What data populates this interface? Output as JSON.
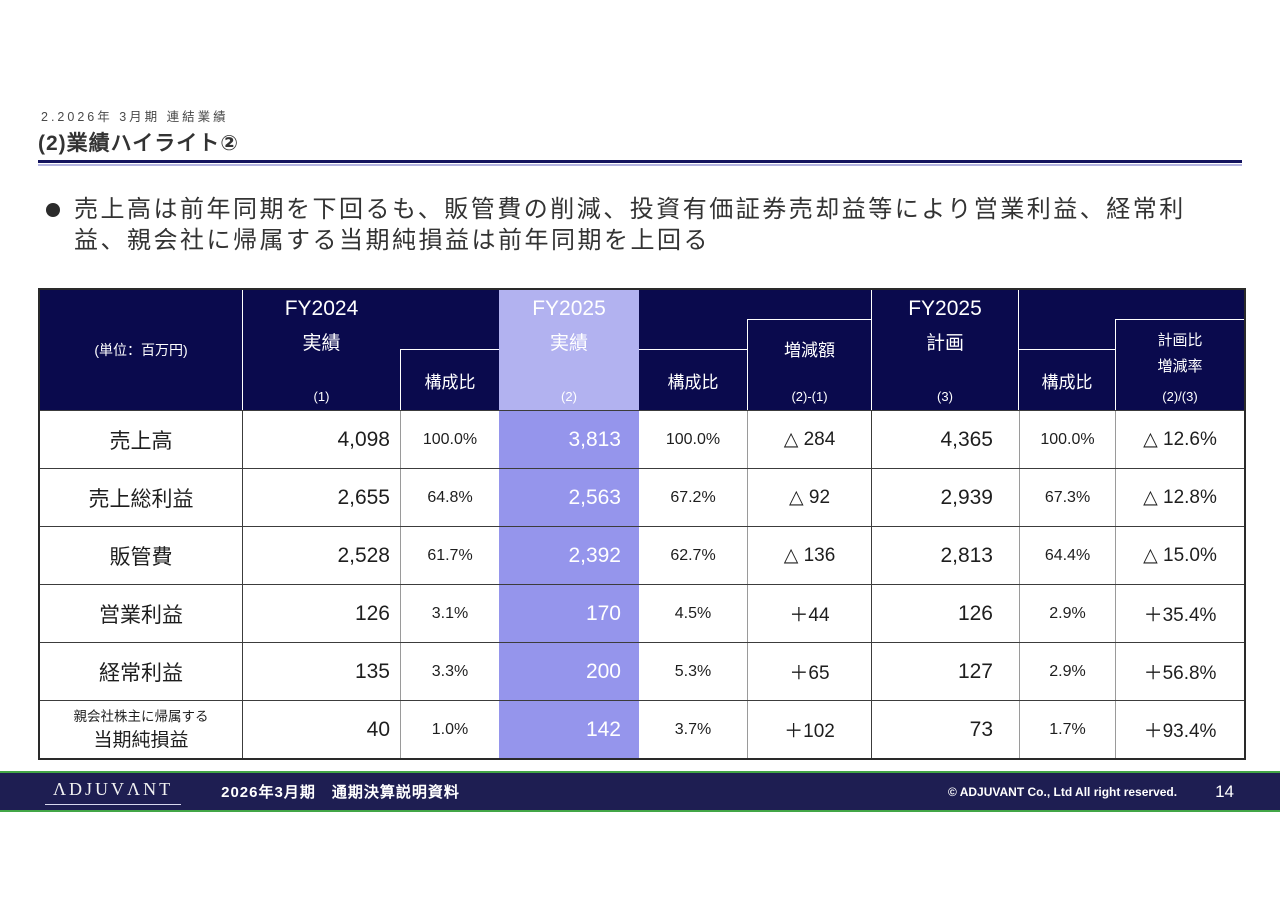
{
  "page": {
    "breadcrumb": "2.2026年 3月期 連結業績",
    "title": "(2)業績ハイライト②"
  },
  "bullet": {
    "lines": [
      "売上高は前年同期を下回るも、販管費の削減、投資有価証券売却益等により営業利益、経常利",
      "益、親会社に帰属する当期純損益は前年同期を上回る"
    ]
  },
  "table": {
    "header": {
      "unit": "(単位：百万円)",
      "fy2024": {
        "title": "FY2024",
        "subtitle": "実績",
        "ref": "(1)"
      },
      "ratio1": "構成比",
      "fy2025": {
        "title": "FY2025",
        "subtitle": "実績",
        "ref": "(2)"
      },
      "ratio2": "構成比",
      "diff": {
        "title": "増減額",
        "ref": "(2)-(1)"
      },
      "plan": {
        "title": "FY2025",
        "subtitle": "計画",
        "ref": "(3)"
      },
      "ratio3": "構成比",
      "plan_ratio": {
        "line1": "計画比",
        "line2": "増減率",
        "ref": "(2)/(3)"
      }
    },
    "rows": [
      {
        "label": "売上高",
        "fy2024": "4,098",
        "ratio1": "100.0%",
        "fy2025": "3,813",
        "ratio2": "100.0%",
        "diff": "△ 284",
        "plan": "4,365",
        "ratio3": "100.0%",
        "plan_ratio": "△ 12.6%"
      },
      {
        "label": "売上総利益",
        "fy2024": "2,655",
        "ratio1": "64.8%",
        "fy2025": "2,563",
        "ratio2": "67.2%",
        "diff": "△ 92",
        "plan": "2,939",
        "ratio3": "67.3%",
        "plan_ratio": "△ 12.8%"
      },
      {
        "label": "販管費",
        "fy2024": "2,528",
        "ratio1": "61.7%",
        "fy2025": "2,392",
        "ratio2": "62.7%",
        "diff": "△ 136",
        "plan": "2,813",
        "ratio3": "64.4%",
        "plan_ratio": "△ 15.0%"
      },
      {
        "label": "営業利益",
        "fy2024": "126",
        "ratio1": "3.1%",
        "fy2025": "170",
        "ratio2": "4.5%",
        "diff": "＋44",
        "plan": "126",
        "ratio3": "2.9%",
        "plan_ratio": "＋35.4%"
      },
      {
        "label": "経常利益",
        "fy2024": "135",
        "ratio1": "3.3%",
        "fy2025": "200",
        "ratio2": "5.3%",
        "diff": "＋65",
        "plan": "127",
        "ratio3": "2.9%",
        "plan_ratio": "＋56.8%"
      },
      {
        "label_small": "親会社株主に帰属する",
        "label": "当期純損益",
        "fy2024": "40",
        "ratio1": "1.0%",
        "fy2025": "142",
        "ratio2": "3.7%",
        "diff": "＋102",
        "plan": "73",
        "ratio3": "1.7%",
        "plan_ratio": "＋93.4%"
      }
    ]
  },
  "footer": {
    "logo": "ΛDJUVΛNT",
    "doc_title": "2026年3月期　通期決算説明資料",
    "copyright": "© ADJUVANT Co., Ltd All right reserved.",
    "page_number": "14"
  },
  "colors": {
    "header_navy": "#0a0a4d",
    "highlight_purple_header": "#b2b2f0",
    "highlight_purple_cell": "#9595ec",
    "footer_navy": "#1e1e52",
    "footer_green": "#43a647",
    "title_rule_navy": "#14145f"
  }
}
